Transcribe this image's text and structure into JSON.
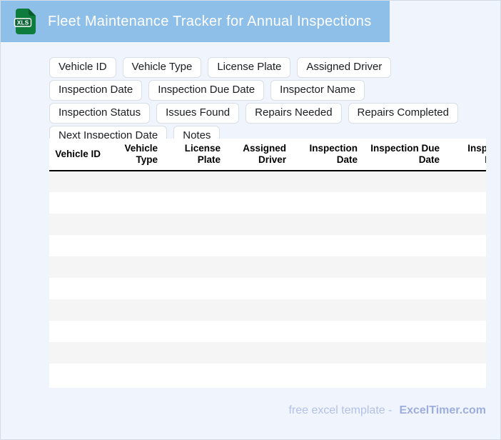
{
  "header": {
    "title": "Fleet Maintenance Tracker for Annual Inspections",
    "icon_label": "XLS"
  },
  "tags": {
    "items": [
      "Vehicle ID",
      "Vehicle Type",
      "License Plate",
      "Assigned Driver",
      "Inspection Date",
      "Inspection Due Date",
      "Inspector Name",
      "Inspection Status",
      "Issues Found",
      "Repairs Needed",
      "Repairs Completed",
      "Next Inspection Date",
      "Notes"
    ]
  },
  "table": {
    "columns": [
      "Vehicle ID",
      "Vehicle Type",
      "License Plate",
      "Assigned Driver",
      "Inspection Date",
      "Inspection Due Date",
      "Inspector Name"
    ],
    "empty_row_count": 10
  },
  "footer": {
    "text": "free excel template -",
    "brand": "ExcelTimer.com"
  },
  "colors": {
    "header_bg": "#8dbfe9",
    "page_bg": "#eff4fd",
    "row_stripe": "#f5f5f5",
    "icon_green": "#0e7c3d",
    "icon_dark_green": "#085c2b",
    "footer_text": "#b3c1e8",
    "footer_brand": "#9daede"
  }
}
